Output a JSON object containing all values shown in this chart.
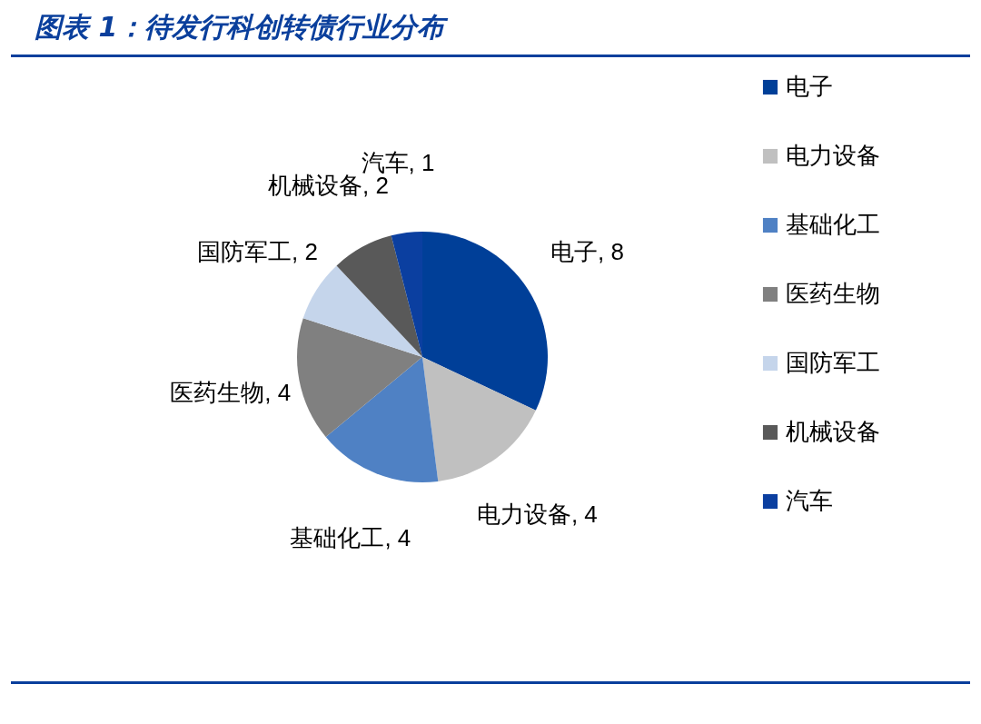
{
  "chart_data": {
    "type": "pie",
    "title": "图表 1：待发行科创转债行业分布",
    "categories": [
      "电子",
      "电力设备",
      "基础化工",
      "医药生物",
      "国防军工",
      "机械设备",
      "汽车"
    ],
    "values": [
      8,
      4,
      4,
      4,
      2,
      2,
      1
    ],
    "colors": [
      "#003f98",
      "#c0c0c0",
      "#4f81c4",
      "#808080",
      "#c5d5eb",
      "#595959",
      "#0b3fa0"
    ],
    "value_labels": [
      ", 8",
      ", 4",
      ", 4",
      ", 4",
      ", 2",
      ", 2",
      ", 1"
    ],
    "legend": "right"
  }
}
